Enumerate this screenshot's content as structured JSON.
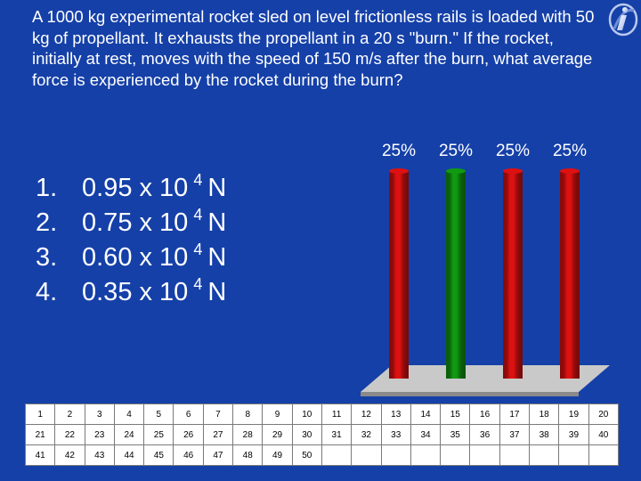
{
  "question": "A 1000 kg experimental rocket sled on level frictionless rails is loaded with 50 kg of propellant. It exhausts the propellant in a 20 s \"burn.\" If the rocket, initially at rest, moves with the speed of 150 m/s after the burn, what average force is experienced by the rocket during the burn?",
  "options": [
    {
      "num": "1.",
      "mantissa": "0.95 x 10",
      "exp": "4",
      "unit": "N"
    },
    {
      "num": "2.",
      "mantissa": "0.75 x 10",
      "exp": "4",
      "unit": "N"
    },
    {
      "num": "3.",
      "mantissa": "0.60 x 10",
      "exp": "4",
      "unit": "N"
    },
    {
      "num": "4.",
      "mantissa": "0.35 x 10",
      "exp": "4",
      "unit": "N"
    }
  ],
  "logo": {
    "icon": "i-clicker-logo-icon"
  },
  "chart_data": {
    "type": "bar",
    "categories": [
      "1",
      "2",
      "3",
      "4"
    ],
    "values": [
      25,
      25,
      25,
      25
    ],
    "value_labels": [
      "25%",
      "25%",
      "25%",
      "25%"
    ],
    "colors": [
      "#dd1111",
      "#119911",
      "#dd1111",
      "#dd1111"
    ],
    "ylim": [
      0,
      100
    ],
    "bar_style": "3d-cylinder",
    "grid": false
  },
  "response_grid": {
    "rows": [
      [
        "1",
        "2",
        "3",
        "4",
        "5",
        "6",
        "7",
        "8",
        "9",
        "10",
        "11",
        "12",
        "13",
        "14",
        "15",
        "16",
        "17",
        "18",
        "19",
        "20"
      ],
      [
        "21",
        "22",
        "23",
        "24",
        "25",
        "26",
        "27",
        "28",
        "29",
        "30",
        "31",
        "32",
        "33",
        "34",
        "35",
        "36",
        "37",
        "38",
        "39",
        "40"
      ],
      [
        "41",
        "42",
        "43",
        "44",
        "45",
        "46",
        "47",
        "48",
        "49",
        "50",
        "",
        "",
        "",
        "",
        "",
        "",
        "",
        "",
        "",
        ""
      ]
    ]
  },
  "colors": {
    "background": "#1540a8",
    "text": "#ffffff",
    "bar_red": "#dd1111",
    "bar_green": "#119911",
    "floor": "#c9c9c9"
  }
}
